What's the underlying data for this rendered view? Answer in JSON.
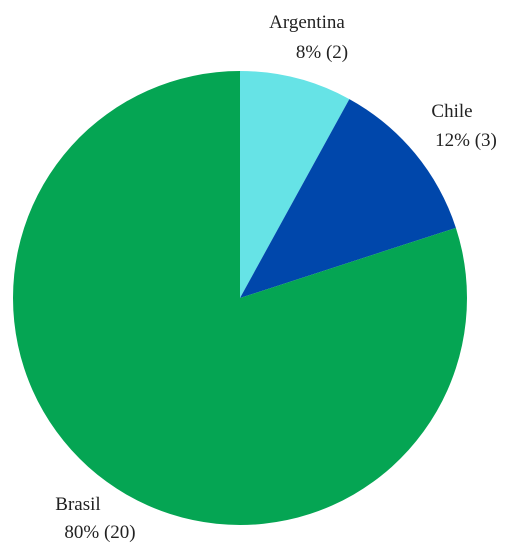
{
  "chart_data": {
    "type": "pie",
    "title": "",
    "start": "12 o'clock",
    "direction": "clockwise",
    "slices": [
      {
        "name": "Argentina",
        "value": 2,
        "percent": "8%",
        "count_label": "(2)",
        "color": "#66e3e6"
      },
      {
        "name": "Chile",
        "value": 3,
        "percent": "12%",
        "count_label": "(3)",
        "color": "#0047ab"
      },
      {
        "name": "Brasil",
        "value": 20,
        "percent": "80%",
        "count_label": "(20)",
        "color": "#05a553"
      }
    ]
  }
}
